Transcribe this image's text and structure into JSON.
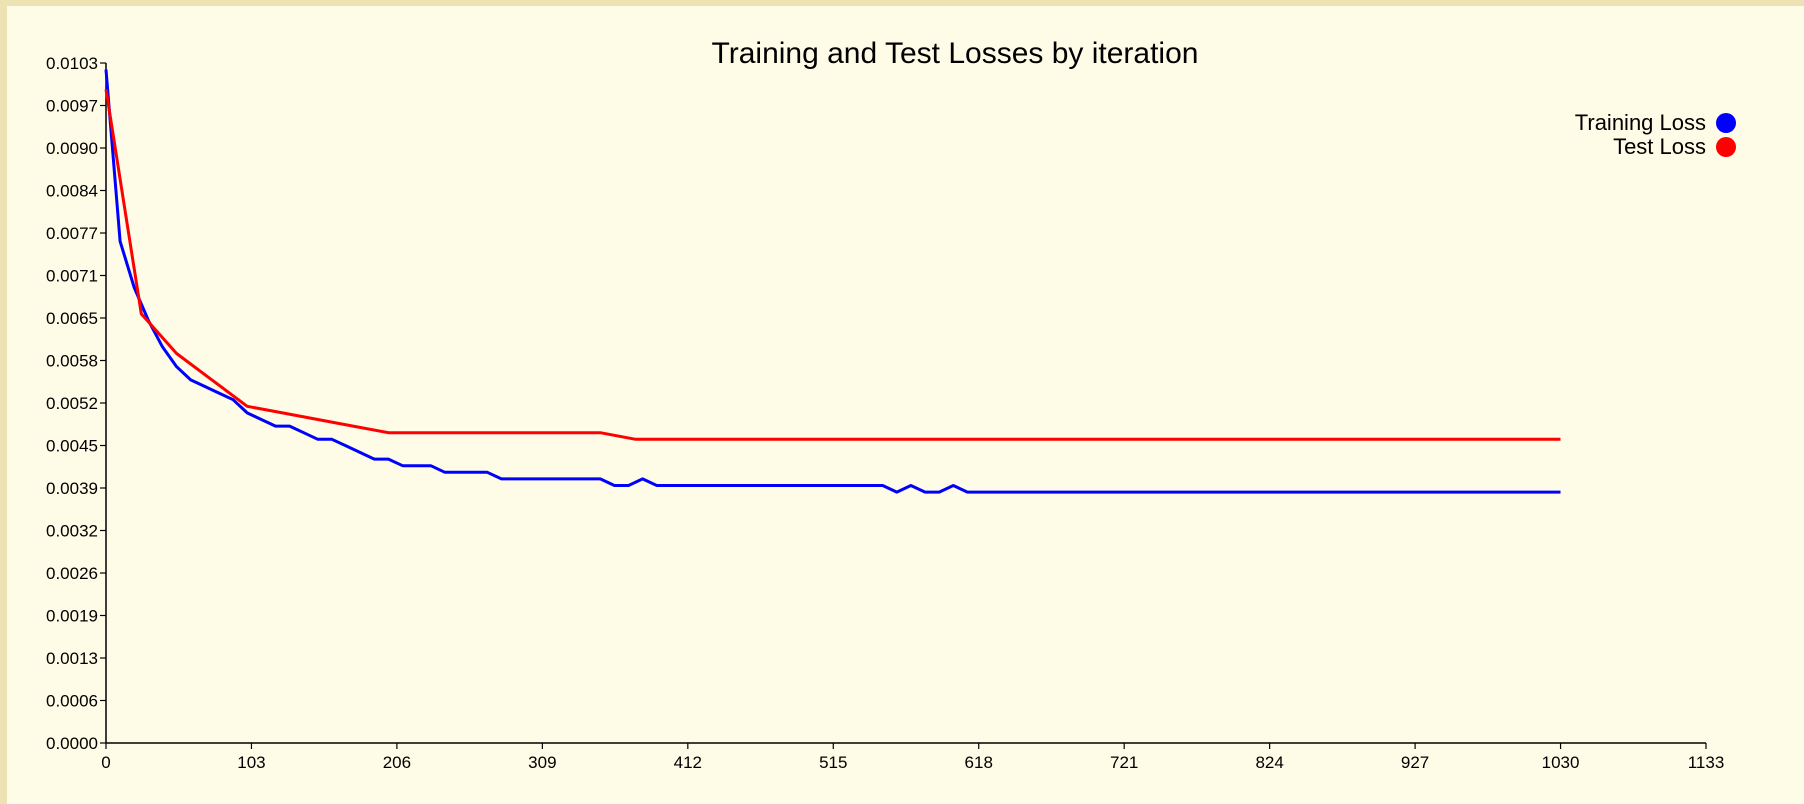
{
  "chart_data": {
    "type": "line",
    "title": "Training and Test Losses by iteration",
    "xlabel": "",
    "ylabel": "",
    "xlim": [
      0,
      1133
    ],
    "ylim": [
      0,
      0.0103
    ],
    "x_ticks": [
      "0",
      "103",
      "206",
      "309",
      "412",
      "515",
      "618",
      "721",
      "824",
      "927",
      "1030",
      "1133"
    ],
    "y_ticks": [
      "0.0000",
      "0.0006",
      "0.0013",
      "0.0019",
      "0.0026",
      "0.0032",
      "0.0039",
      "0.0045",
      "0.0052",
      "0.0058",
      "0.0065",
      "0.0071",
      "0.0077",
      "0.0084",
      "0.0090",
      "0.0097",
      "0.0103"
    ],
    "grid": false,
    "legend_position": "top-right",
    "series": [
      {
        "name": "Training Loss",
        "color": "#0000ff",
        "x": [
          0,
          10,
          20,
          30,
          40,
          50,
          60,
          70,
          80,
          90,
          100,
          110,
          120,
          130,
          140,
          150,
          160,
          170,
          180,
          190,
          200,
          210,
          220,
          230,
          240,
          250,
          260,
          270,
          280,
          290,
          300,
          310,
          320,
          330,
          340,
          350,
          360,
          370,
          380,
          390,
          400,
          410,
          420,
          430,
          440,
          450,
          460,
          470,
          480,
          490,
          500,
          510,
          520,
          530,
          540,
          550,
          560,
          570,
          580,
          590,
          600,
          610,
          620,
          630,
          640,
          650,
          660,
          670,
          680,
          690,
          700,
          710,
          720,
          730,
          740,
          750,
          760,
          770,
          780,
          790,
          800,
          810,
          820,
          830,
          840,
          850,
          860,
          870,
          880,
          890,
          900,
          910,
          920,
          930,
          940,
          950,
          960,
          970,
          980,
          990,
          1000,
          1010,
          1020,
          1030
        ],
        "y": [
          0.0102,
          0.0076,
          0.0069,
          0.0064,
          0.006,
          0.0057,
          0.0055,
          0.0054,
          0.0053,
          0.0052,
          0.005,
          0.0049,
          0.0048,
          0.0048,
          0.0047,
          0.0046,
          0.0046,
          0.0045,
          0.0044,
          0.0043,
          0.0043,
          0.0042,
          0.0042,
          0.0042,
          0.0041,
          0.0041,
          0.0041,
          0.0041,
          0.004,
          0.004,
          0.004,
          0.004,
          0.004,
          0.004,
          0.004,
          0.004,
          0.0039,
          0.0039,
          0.004,
          0.0039,
          0.0039,
          0.0039,
          0.0039,
          0.0039,
          0.0039,
          0.0039,
          0.0039,
          0.0039,
          0.0039,
          0.0039,
          0.0039,
          0.0039,
          0.0039,
          0.0039,
          0.0039,
          0.0039,
          0.0038,
          0.0039,
          0.0038,
          0.0038,
          0.0039,
          0.0038,
          0.0038,
          0.0038,
          0.0038,
          0.0038,
          0.0038,
          0.0038,
          0.0038,
          0.0038,
          0.0038,
          0.0038,
          0.0038,
          0.0038,
          0.0038,
          0.0038,
          0.0038,
          0.0038,
          0.0038,
          0.0038,
          0.0038,
          0.0038,
          0.0038,
          0.0038,
          0.0038,
          0.0038,
          0.0038,
          0.0038,
          0.0038,
          0.0038,
          0.0038,
          0.0038,
          0.0038,
          0.0038,
          0.0038,
          0.0038,
          0.0038,
          0.0038,
          0.0038,
          0.0038,
          0.0038,
          0.0038,
          0.0038,
          0.0038
        ]
      },
      {
        "name": "Test Loss",
        "color": "#ff0000",
        "x": [
          0,
          25,
          50,
          75,
          100,
          125,
          150,
          175,
          200,
          225,
          250,
          275,
          300,
          325,
          350,
          375,
          400,
          450,
          500,
          525,
          550,
          600,
          650,
          700,
          750,
          800,
          850,
          900,
          950,
          1000,
          1030
        ],
        "y": [
          0.0099,
          0.0065,
          0.0059,
          0.0055,
          0.0051,
          0.005,
          0.0049,
          0.0048,
          0.0047,
          0.0047,
          0.0047,
          0.0047,
          0.0047,
          0.0047,
          0.0047,
          0.0046,
          0.0046,
          0.0046,
          0.0046,
          0.0046,
          0.0046,
          0.0046,
          0.0046,
          0.0046,
          0.0046,
          0.0046,
          0.0046,
          0.0046,
          0.0046,
          0.0046,
          0.0046
        ]
      }
    ]
  }
}
